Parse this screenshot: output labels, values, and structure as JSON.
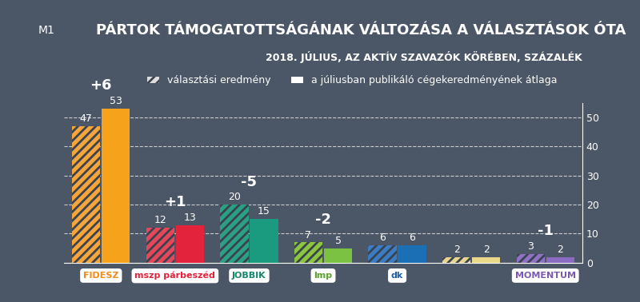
{
  "chart_data": {
    "type": "bar",
    "channel": "M1",
    "title": "PÁRTOK TÁMOGATOTTSÁGÁNAK VÁLTOZÁSA A VÁLASZTÁSOK ÓTA",
    "subtitle": "2018. JÚLIUS, AZ AKTÍV SZAVAZÓK KÖRÉBEN, SZÁZALÉK",
    "categories": [
      "FIDESZ",
      "mszp párbeszéd",
      "JOBBIK",
      "lmp",
      "dk",
      null,
      "MOMENTUM"
    ],
    "category_colors": [
      "#f08a1c",
      "#e2233b",
      "#14866c",
      "#5aa02c",
      "#1b5fa8",
      "#9a8a40",
      "#7a5bb0"
    ],
    "series": [
      {
        "name": "választási eredmény",
        "values": [
          47,
          12,
          20,
          7,
          6,
          2,
          3
        ],
        "colors": [
          "#f5a53a",
          "#e8475a",
          "#2aa085",
          "#8cc63f",
          "#3b7dc4",
          "#e8d690",
          "#8f72c4"
        ]
      },
      {
        "name": "a júliusban publikáló cégekeredményének átlaga",
        "values": [
          53,
          13,
          15,
          5,
          6,
          2,
          2
        ],
        "colors": [
          "#f7a21b",
          "#e2233b",
          "#1a9a7e",
          "#7bc142",
          "#1b6fb5",
          "#ead88a",
          "#8b6bbf"
        ]
      }
    ],
    "change_labels": [
      "+6",
      "+1",
      "-5",
      "-2",
      null,
      null,
      "-1"
    ],
    "ylim": [
      0,
      55
    ],
    "yticks": [
      0,
      10,
      20,
      30,
      40,
      50
    ],
    "grid": true,
    "data_labels": true,
    "legend": "upper center"
  }
}
